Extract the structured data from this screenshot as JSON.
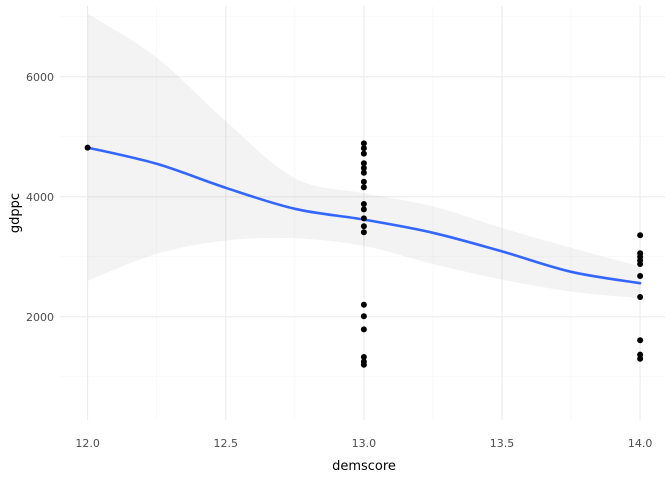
{
  "chart_data": {
    "type": "scatter",
    "xlabel": "demscore",
    "ylabel": "gdppc",
    "xlim": [
      11.9,
      14.09
    ],
    "ylim": [
      280,
      7180
    ],
    "x_ticks": [
      12.0,
      12.5,
      13.0,
      13.5,
      14.0
    ],
    "x_tick_labels": [
      "12.0",
      "12.5",
      "13.0",
      "13.5",
      "14.0"
    ],
    "y_ticks": [
      2000,
      4000,
      6000
    ],
    "y_tick_labels": [
      "2000",
      "4000",
      "6000"
    ],
    "grid": true,
    "legend": "none",
    "points": [
      {
        "x": 12.0,
        "y": 4820
      },
      {
        "x": 13.0,
        "y": 4890
      },
      {
        "x": 13.0,
        "y": 4810
      },
      {
        "x": 13.0,
        "y": 4720
      },
      {
        "x": 13.0,
        "y": 4560
      },
      {
        "x": 13.0,
        "y": 4480
      },
      {
        "x": 13.0,
        "y": 4400
      },
      {
        "x": 13.0,
        "y": 4250
      },
      {
        "x": 13.0,
        "y": 4160
      },
      {
        "x": 13.0,
        "y": 3880
      },
      {
        "x": 13.0,
        "y": 3790
      },
      {
        "x": 13.0,
        "y": 3640
      },
      {
        "x": 13.0,
        "y": 3510
      },
      {
        "x": 13.0,
        "y": 3410
      },
      {
        "x": 13.0,
        "y": 2200
      },
      {
        "x": 13.0,
        "y": 2010
      },
      {
        "x": 13.0,
        "y": 1790
      },
      {
        "x": 13.0,
        "y": 1330
      },
      {
        "x": 13.0,
        "y": 1250
      },
      {
        "x": 13.0,
        "y": 1200
      },
      {
        "x": 14.0,
        "y": 3360
      },
      {
        "x": 14.0,
        "y": 3060
      },
      {
        "x": 14.0,
        "y": 3000
      },
      {
        "x": 14.0,
        "y": 2940
      },
      {
        "x": 14.0,
        "y": 2880
      },
      {
        "x": 14.0,
        "y": 2680
      },
      {
        "x": 14.0,
        "y": 2330
      },
      {
        "x": 14.0,
        "y": 1610
      },
      {
        "x": 14.0,
        "y": 1370
      },
      {
        "x": 14.0,
        "y": 1300
      }
    ],
    "smooth": {
      "x": [
        12.0,
        12.25,
        12.5,
        12.75,
        13.0,
        13.25,
        13.5,
        13.75,
        14.0
      ],
      "y": [
        4820,
        4550,
        4150,
        3800,
        3620,
        3400,
        3090,
        2750,
        2560
      ],
      "lower": [
        2600,
        3050,
        3270,
        3310,
        3180,
        2880,
        2620,
        2420,
        2310
      ],
      "upper": [
        7050,
        6320,
        5260,
        4310,
        4060,
        3840,
        3480,
        3150,
        2840
      ]
    },
    "colors": {
      "point": "#000000",
      "line": "#3366ff",
      "ribbon": "#999999",
      "grid_major": "#ebebeb",
      "grid_minor": "#f5f5f5"
    }
  }
}
